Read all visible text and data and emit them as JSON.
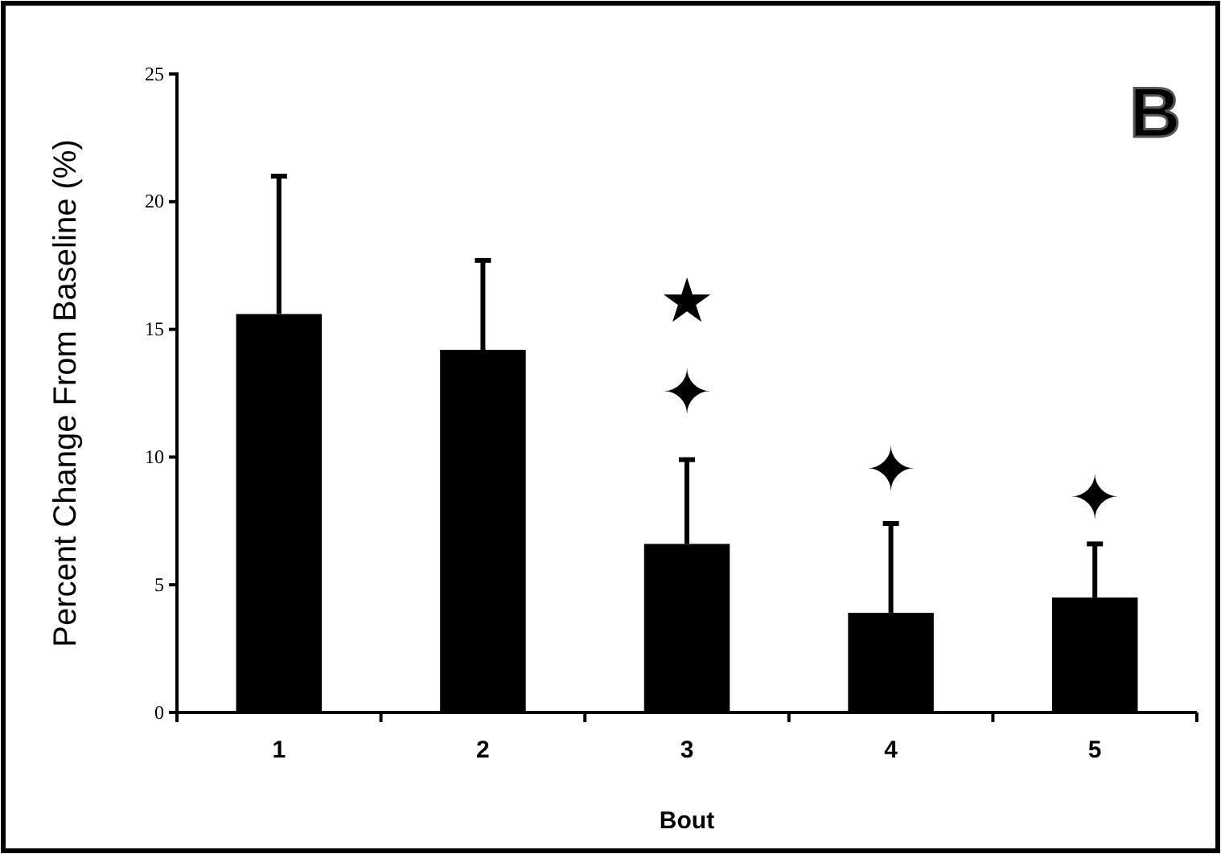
{
  "chart_data": {
    "type": "bar",
    "xlabel": "Bout",
    "ylabel": "Percent Change From Baseline (%)",
    "categories": [
      "1",
      "2",
      "3",
      "4",
      "5"
    ],
    "values": [
      15.6,
      14.2,
      6.6,
      3.9,
      4.5
    ],
    "errors": [
      [
        15.6,
        21.0
      ],
      [
        14.2,
        17.7
      ],
      [
        6.6,
        9.9
      ],
      [
        3.9,
        7.4
      ],
      [
        4.5,
        6.6
      ]
    ],
    "color": "#000000",
    "ylim": [
      0,
      25
    ],
    "yticks": [
      0,
      5,
      10,
      15,
      20,
      25
    ],
    "grid": false,
    "annotations": [
      "★",
      "✦",
      "✦",
      "✦",
      "B"
    ]
  }
}
